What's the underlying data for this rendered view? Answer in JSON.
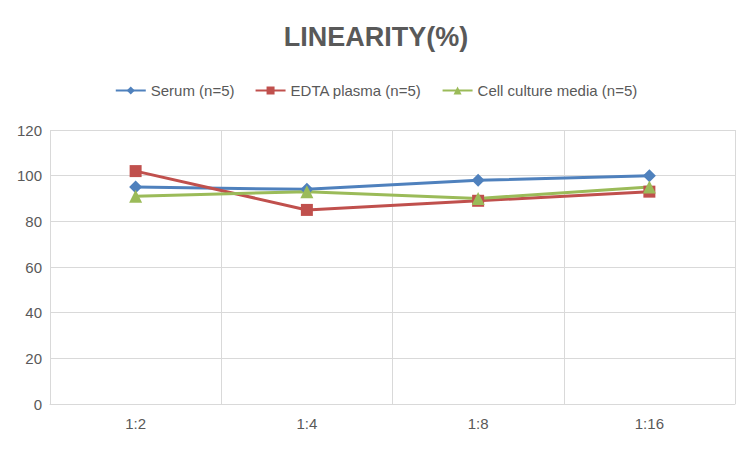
{
  "chart_data": {
    "type": "line",
    "title": "LINEARITY(%)",
    "categories": [
      "1:2",
      "1:4",
      "1:8",
      "1:16"
    ],
    "series": [
      {
        "name": "Serum (n=5)",
        "color": "#4F81BD",
        "marker": "diamond",
        "values": [
          95,
          94,
          98,
          100
        ]
      },
      {
        "name": "EDTA plasma (n=5)",
        "color": "#C0504D",
        "marker": "square",
        "values": [
          102,
          85,
          89,
          93
        ]
      },
      {
        "name": "Cell culture media (n=5)",
        "color": "#9BBB59",
        "marker": "triangle",
        "values": [
          91,
          93,
          90,
          95
        ]
      }
    ],
    "ylim": [
      0,
      120
    ],
    "yticks": [
      0,
      20,
      40,
      60,
      80,
      100,
      120
    ],
    "grid": true,
    "legend": "top"
  }
}
